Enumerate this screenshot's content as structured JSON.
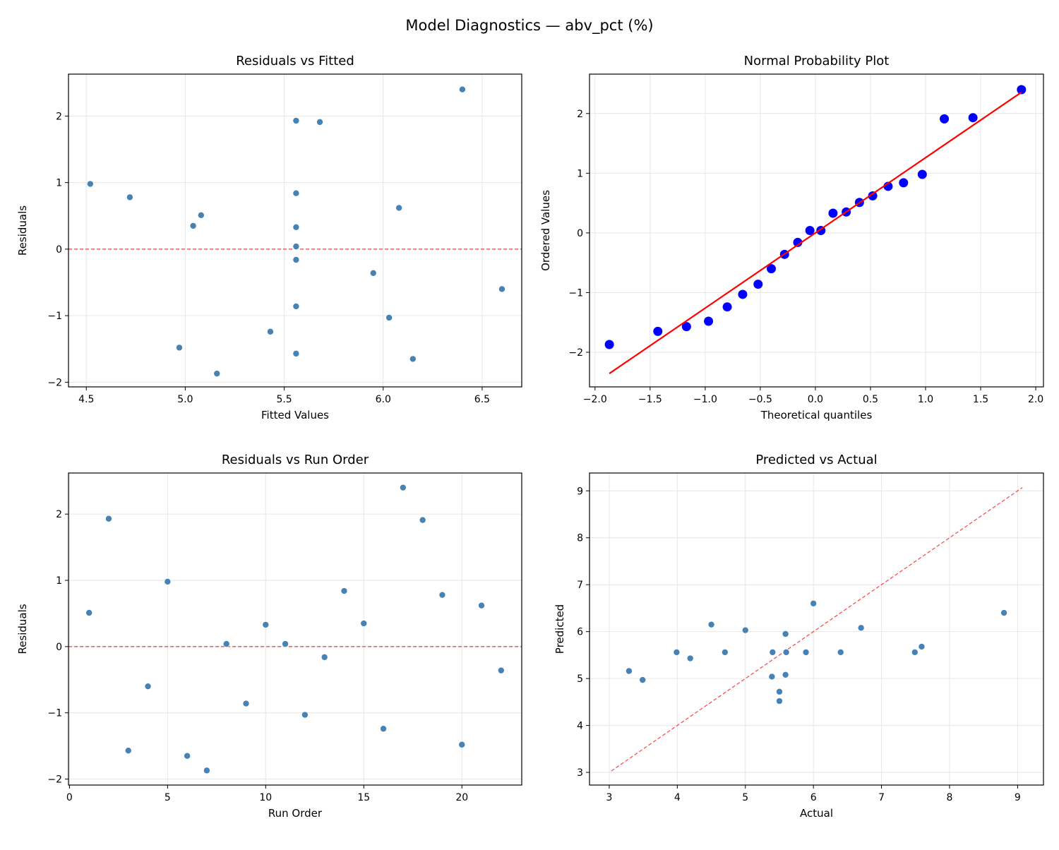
{
  "figure_title": "Model Diagnostics — abv_pct (%)",
  "colors": {
    "points": "#4682b4",
    "qq_points": "#0000ff",
    "qq_line": "#ff0000",
    "reference_line": "#ff0000",
    "grid": "#e6e6e6"
  },
  "chart_data": [
    {
      "type": "scatter",
      "title": "Residuals vs Fitted",
      "xlabel": "Fitted Values",
      "ylabel": "Residuals",
      "xlim": [
        4.41,
        6.7
      ],
      "ylim": [
        -2.07,
        2.63
      ],
      "xticks": [
        "4.5",
        "5.0",
        "5.5",
        "6.0",
        "6.5"
      ],
      "yticks": [
        "−2",
        "−1",
        "0",
        "1",
        "2"
      ],
      "grid": true,
      "reference_line": {
        "type": "horizontal",
        "y": 0,
        "style": "dashed"
      },
      "x": [
        5.08,
        5.56,
        5.56,
        6.6,
        4.52,
        6.15,
        5.16,
        5.56,
        5.56,
        5.56,
        5.56,
        6.03,
        5.56,
        5.56,
        5.04,
        5.43,
        6.4,
        5.68,
        4.72,
        4.97,
        6.08,
        5.95
      ],
      "y": [
        0.51,
        1.93,
        -1.57,
        -0.6,
        0.98,
        -1.65,
        -1.87,
        0.04,
        -0.86,
        0.33,
        0.04,
        -1.03,
        -0.16,
        0.84,
        0.35,
        -1.24,
        2.4,
        1.91,
        0.78,
        -1.48,
        0.62,
        -0.36
      ]
    },
    {
      "type": "scatter",
      "title": "Normal Probability Plot",
      "xlabel": "Theoretical quantiles",
      "ylabel": "Ordered Values",
      "xlim": [
        -2.05,
        2.07
      ],
      "ylim": [
        -2.58,
        2.66
      ],
      "xticks": [
        "−2.0",
        "−1.5",
        "−1.0",
        "−0.5",
        "0.0",
        "0.5",
        "1.0",
        "1.5",
        "2.0"
      ],
      "yticks": [
        "−2",
        "−1",
        "0",
        "1",
        "2"
      ],
      "grid": true,
      "fit_line": {
        "slope": 1.26,
        "intercept": 0.0,
        "x_range": [
          -1.87,
          1.87
        ]
      },
      "x": [
        -1.87,
        -1.43,
        -1.17,
        -0.97,
        -0.8,
        -0.66,
        -0.52,
        -0.4,
        -0.28,
        -0.16,
        -0.05,
        0.05,
        0.16,
        0.28,
        0.4,
        0.52,
        0.66,
        0.8,
        0.97,
        1.17,
        1.43,
        1.87
      ],
      "y": [
        -1.87,
        -1.65,
        -1.57,
        -1.48,
        -1.24,
        -1.03,
        -0.86,
        -0.6,
        -0.36,
        -0.16,
        0.04,
        0.04,
        0.33,
        0.35,
        0.51,
        0.62,
        0.78,
        0.84,
        0.98,
        1.91,
        1.93,
        2.4
      ]
    },
    {
      "type": "scatter",
      "title": "Residuals vs Run Order",
      "xlabel": "Run Order",
      "ylabel": "Residuals",
      "xlim": [
        -0.05,
        23.05
      ],
      "ylim": [
        -2.09,
        2.62
      ],
      "xticks": [
        "0",
        "5",
        "10",
        "15",
        "20"
      ],
      "yticks": [
        "−2",
        "−1",
        "0",
        "1",
        "2"
      ],
      "grid": true,
      "reference_line": {
        "type": "horizontal",
        "y": 0,
        "style": "dashed"
      },
      "x": [
        1,
        2,
        3,
        4,
        5,
        6,
        7,
        8,
        9,
        10,
        11,
        12,
        13,
        14,
        15,
        16,
        17,
        18,
        19,
        20,
        21,
        22
      ],
      "y": [
        0.51,
        1.93,
        -1.57,
        -0.6,
        0.98,
        -1.65,
        -1.87,
        0.04,
        -0.86,
        0.33,
        0.04,
        -1.03,
        -0.16,
        0.84,
        0.35,
        -1.24,
        2.4,
        1.91,
        0.78,
        -1.48,
        0.62,
        -0.36
      ]
    },
    {
      "type": "scatter",
      "title": "Predicted vs Actual",
      "xlabel": "Actual",
      "ylabel": "Predicted",
      "xlim": [
        2.71,
        9.38
      ],
      "ylim": [
        2.73,
        9.38
      ],
      "xticks": [
        "3",
        "4",
        "5",
        "6",
        "7",
        "8",
        "9"
      ],
      "yticks": [
        "3",
        "4",
        "5",
        "6",
        "7",
        "8",
        "9"
      ],
      "grid": true,
      "reference_line": {
        "type": "diagonal",
        "range": [
          3.03,
          9.07
        ],
        "style": "dashed"
      },
      "x": [
        5.59,
        7.49,
        3.99,
        6.0,
        5.5,
        4.5,
        3.29,
        5.6,
        4.7,
        5.89,
        5.6,
        5.0,
        5.4,
        6.4,
        5.39,
        4.19,
        8.8,
        7.59,
        5.5,
        3.49,
        6.7,
        5.59
      ],
      "y": [
        5.08,
        5.56,
        5.56,
        6.6,
        4.52,
        6.15,
        5.16,
        5.56,
        5.56,
        5.56,
        5.56,
        6.03,
        5.56,
        5.56,
        5.04,
        5.43,
        6.4,
        5.68,
        4.72,
        4.97,
        6.08,
        5.95
      ]
    }
  ]
}
